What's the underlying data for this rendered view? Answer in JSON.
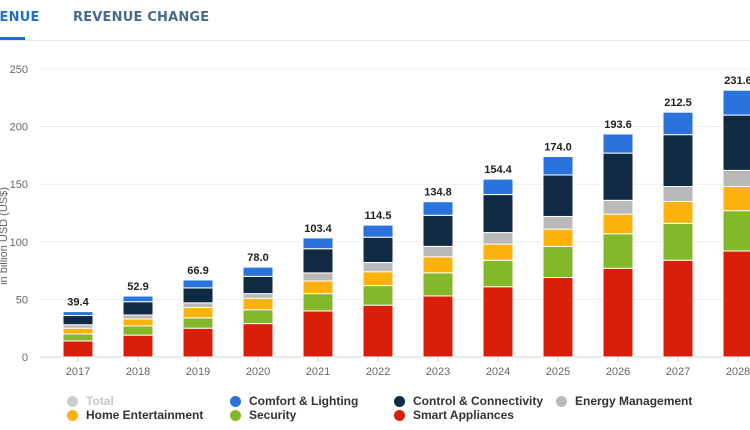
{
  "tabs": [
    {
      "label": "REVENUE",
      "active": true
    },
    {
      "label": "REVENUE CHANGE",
      "active": false
    }
  ],
  "colors": {
    "Smart Appliances": "#d91e0a",
    "Security": "#82b82a",
    "Home Entertainment": "#fcb20b",
    "Energy Management": "#b9b9b9",
    "Control & Connectivity": "#102a44",
    "Comfort & Lighting": "#2a72dc",
    "Total": "#cccccc"
  },
  "legend": [
    {
      "label": "Total",
      "inactive": true
    },
    {
      "label": "Comfort & Lighting",
      "inactive": false
    },
    {
      "label": "Control & Connectivity",
      "inactive": false
    },
    {
      "label": "Energy Management",
      "inactive": false
    },
    {
      "label": "Home Entertainment",
      "inactive": false
    },
    {
      "label": "Security",
      "inactive": false
    },
    {
      "label": "Smart Appliances",
      "inactive": false
    }
  ],
  "chart_data": {
    "type": "bar",
    "stacked": true,
    "title": "",
    "xlabel": "",
    "ylabel": "in billion USD (US$)",
    "ylim": [
      0,
      250
    ],
    "yticks": [
      0,
      50,
      100,
      150,
      200,
      250
    ],
    "grid": true,
    "legend_position": "bottom",
    "categories": [
      "2017",
      "2018",
      "2019",
      "2020",
      "2021",
      "2022",
      "2023",
      "2024",
      "2025",
      "2026",
      "2027",
      "2028"
    ],
    "totals": [
      "39.4",
      "52.9",
      "66.9",
      "78.0",
      "103.4",
      "114.5",
      "134.8",
      "154.4",
      "174.0",
      "193.6",
      "212.5",
      "231.6"
    ],
    "series": [
      {
        "name": "Smart Appliances",
        "values": [
          14,
          19,
          25,
          29,
          40,
          45,
          53,
          61,
          69,
          77,
          84,
          92
        ]
      },
      {
        "name": "Security",
        "values": [
          6,
          8,
          9,
          12,
          15,
          17,
          20,
          23,
          27,
          30,
          32,
          35
        ]
      },
      {
        "name": "Home Entertainment",
        "values": [
          5,
          6,
          9,
          10,
          11,
          12,
          14,
          14,
          15,
          17,
          19,
          21
        ]
      },
      {
        "name": "Energy Management",
        "values": [
          3,
          3.5,
          4,
          4,
          7,
          8,
          9,
          10,
          11,
          12,
          13,
          14
        ]
      },
      {
        "name": "Control & Connectivity",
        "values": [
          8,
          11.5,
          13,
          15,
          21,
          22,
          27,
          33,
          36,
          41,
          45,
          48
        ]
      },
      {
        "name": "Comfort & Lighting",
        "values": [
          3.4,
          4.9,
          6.9,
          8,
          9.4,
          10.5,
          11.8,
          13.4,
          16,
          16.6,
          19.5,
          21.6
        ]
      }
    ]
  }
}
